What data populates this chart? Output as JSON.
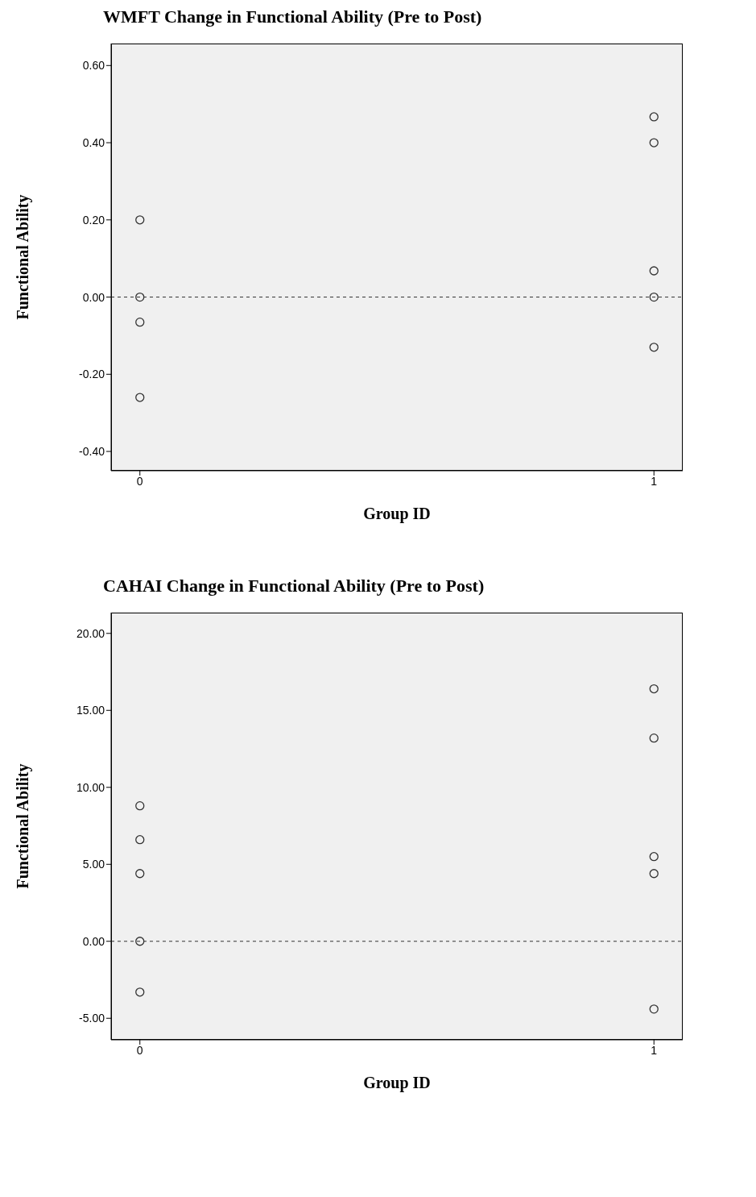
{
  "chart_data": [
    {
      "type": "scatter",
      "title": "WMFT Change in Functional Ability (Pre to Post)",
      "xlabel": "Group ID",
      "ylabel": "Functional Ability",
      "categories": [
        "0",
        "1"
      ],
      "series": [
        {
          "color": "#333333",
          "x": [
            "0",
            "0",
            "0",
            "0",
            "1",
            "1",
            "1",
            "1",
            "1"
          ],
          "values": [
            0.2,
            0.0,
            -0.065,
            -0.26,
            0.467,
            0.4,
            0.068,
            0.0,
            -0.13
          ]
        }
      ],
      "ylim": [
        -0.45,
        0.657
      ],
      "yticks": [
        {
          "value": -0.4,
          "label": "-0.40"
        },
        {
          "value": -0.2,
          "label": "-0.20"
        },
        {
          "value": 0,
          "label": "0.00"
        },
        {
          "value": 0.2,
          "label": "0.20"
        },
        {
          "value": 0.4,
          "label": "0.40"
        },
        {
          "value": 0.6,
          "label": "0.60"
        }
      ],
      "ref_lines": [
        {
          "axis": "y",
          "value": 0,
          "color": "#333333",
          "line_style": "dashed"
        }
      ],
      "marker": "circle",
      "grid": false,
      "legend": false
    },
    {
      "type": "scatter",
      "title": "CAHAI Change in Functional Ability (Pre to Post)",
      "xlabel": "Group ID",
      "ylabel": "Functional Ability",
      "categories": [
        "0",
        "1"
      ],
      "series": [
        {
          "color": "#333333",
          "x": [
            "0",
            "0",
            "0",
            "0",
            "0",
            "1",
            "1",
            "1",
            "1",
            "1"
          ],
          "values": [
            8.8,
            6.6,
            4.4,
            0.0,
            -3.3,
            16.4,
            13.2,
            5.5,
            4.4,
            -4.4
          ]
        }
      ],
      "ylim": [
        -6.4,
        21.35
      ],
      "yticks": [
        {
          "value": -5,
          "label": "-5.00"
        },
        {
          "value": 0,
          "label": "0.00"
        },
        {
          "value": 5,
          "label": "5.00"
        },
        {
          "value": 10,
          "label": "10.00"
        },
        {
          "value": 15,
          "label": "15.00"
        },
        {
          "value": 20,
          "label": "20.00"
        }
      ],
      "ref_lines": [
        {
          "axis": "y",
          "value": 0,
          "color": "#333333",
          "line_style": "dashed"
        }
      ],
      "marker": "circle",
      "grid": false,
      "legend": false
    }
  ]
}
